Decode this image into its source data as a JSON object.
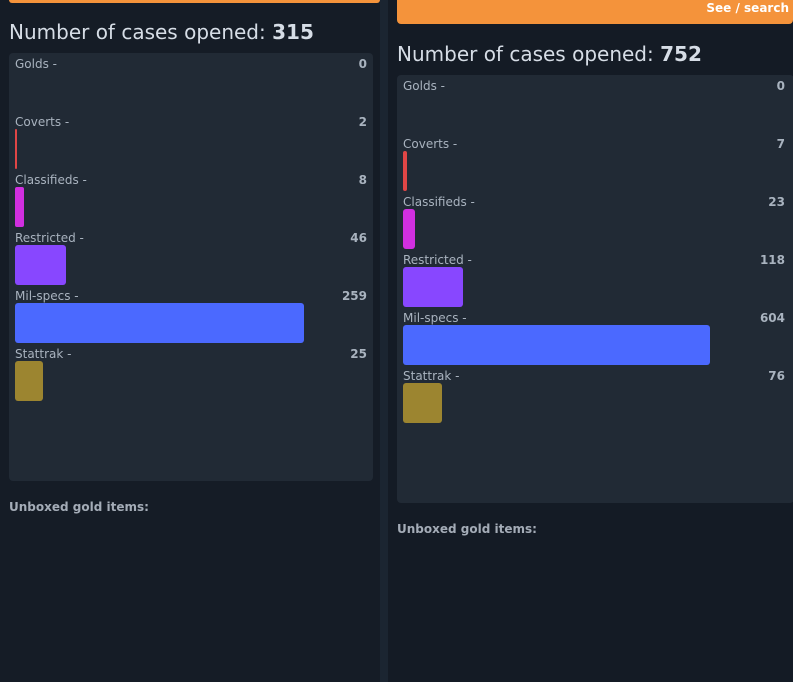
{
  "panels": [
    {
      "cases_label": "Number of cases opened:",
      "cases_count": "315",
      "gold_heading": "Unboxed gold items:",
      "stats": [
        {
          "label": "Golds -",
          "count": "0",
          "fill": 0.0,
          "color": "#e3b843"
        },
        {
          "label": "Coverts -",
          "count": "2",
          "fill": 0.008,
          "color": "#e04646"
        },
        {
          "label": "Classifieds -",
          "count": "8",
          "fill": 0.031,
          "color": "#d12fe0"
        },
        {
          "label": "Restricted -",
          "count": "46",
          "fill": 0.178,
          "color": "#8847ff"
        },
        {
          "label": "Mil-specs -",
          "count": "259",
          "fill": 1.0,
          "color": "#4b69ff"
        },
        {
          "label": "Stattrak -",
          "count": "25",
          "fill": 0.097,
          "color": "#9c8530"
        }
      ]
    },
    {
      "see_search_label": "See / search",
      "cases_label": "Number of cases opened:",
      "cases_count": "752",
      "gold_heading": "Unboxed gold items:",
      "stats": [
        {
          "label": "Golds -",
          "count": "0",
          "fill": 0.0,
          "color": "#e3b843"
        },
        {
          "label": "Coverts -",
          "count": "7",
          "fill": 0.012,
          "color": "#e04646"
        },
        {
          "label": "Classifieds -",
          "count": "23",
          "fill": 0.038,
          "color": "#d12fe0"
        },
        {
          "label": "Restricted -",
          "count": "118",
          "fill": 0.195,
          "color": "#8847ff"
        },
        {
          "label": "Mil-specs -",
          "count": "604",
          "fill": 1.0,
          "color": "#4b69ff"
        },
        {
          "label": "Stattrak -",
          "count": "76",
          "fill": 0.126,
          "color": "#9c8530"
        }
      ]
    }
  ]
}
